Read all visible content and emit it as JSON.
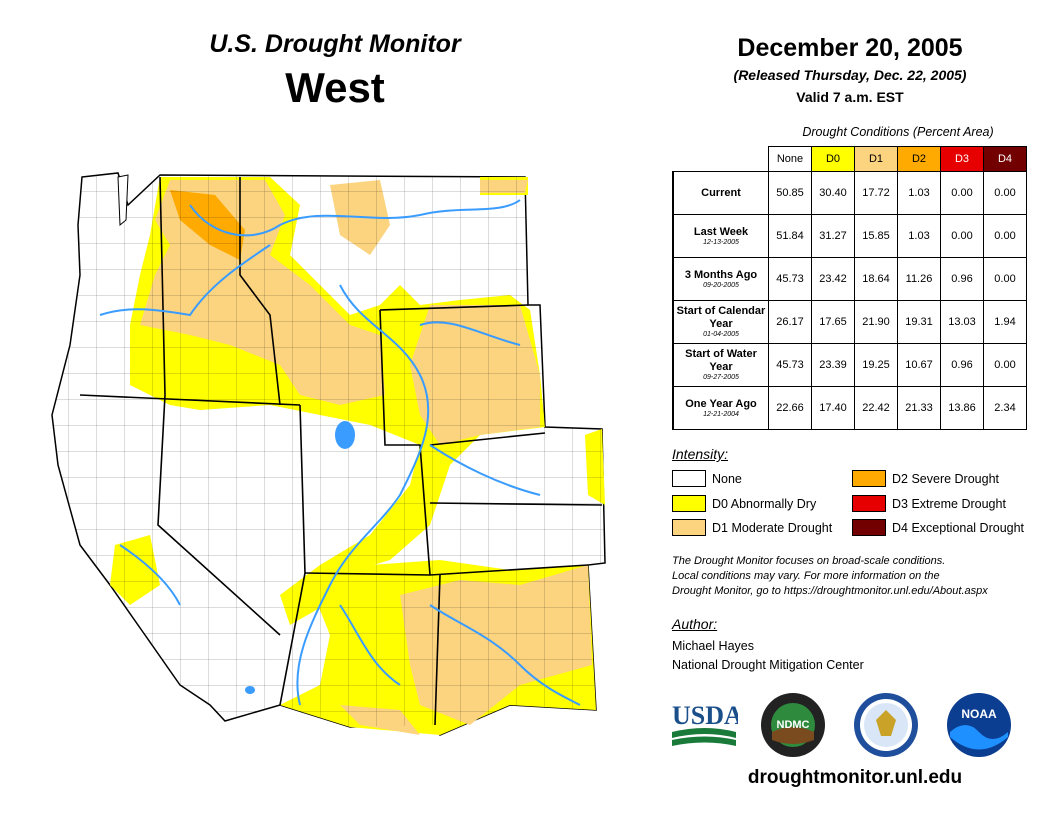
{
  "header": {
    "title": "U.S. Drought Monitor",
    "region": "West",
    "date": "December 20, 2005",
    "released": "(Released Thursday, Dec. 22, 2005)",
    "valid": "Valid 7 a.m. EST"
  },
  "table": {
    "caption": "Drought Conditions (Percent Area)",
    "columns": [
      "None",
      "D0",
      "D1",
      "D2",
      "D3",
      "D4"
    ],
    "column_colors": [
      "#ffffff",
      "#ffff00",
      "#fcd37f",
      "#ffaa00",
      "#e60000",
      "#730000"
    ],
    "rows": [
      {
        "label": "Current",
        "sub": "",
        "values": [
          "50.85",
          "30.40",
          "17.72",
          "1.03",
          "0.00",
          "0.00"
        ]
      },
      {
        "label": "Last Week",
        "sub": "12-13-2005",
        "values": [
          "51.84",
          "31.27",
          "15.85",
          "1.03",
          "0.00",
          "0.00"
        ]
      },
      {
        "label": "3 Months Ago",
        "sub": "09-20-2005",
        "values": [
          "45.73",
          "23.42",
          "18.64",
          "11.26",
          "0.96",
          "0.00"
        ]
      },
      {
        "label": "Start of Calendar Year",
        "sub": "01-04-2005",
        "values": [
          "26.17",
          "17.65",
          "21.90",
          "19.31",
          "13.03",
          "1.94"
        ]
      },
      {
        "label": "Start of Water Year",
        "sub": "09-27-2005",
        "values": [
          "45.73",
          "23.39",
          "19.25",
          "10.67",
          "0.96",
          "0.00"
        ]
      },
      {
        "label": "One Year Ago",
        "sub": "12-21-2004",
        "values": [
          "22.66",
          "17.40",
          "22.42",
          "21.33",
          "13.86",
          "2.34"
        ]
      }
    ]
  },
  "legend": {
    "heading": "Intensity:",
    "items": [
      {
        "label": "None",
        "color": "#ffffff"
      },
      {
        "label": "D0 Abnormally Dry",
        "color": "#ffff00"
      },
      {
        "label": "D1 Moderate Drought",
        "color": "#fcd37f"
      },
      {
        "label": "D2 Severe Drought",
        "color": "#ffaa00"
      },
      {
        "label": "D3 Extreme Drought",
        "color": "#e60000"
      },
      {
        "label": "D4 Exceptional Drought",
        "color": "#730000"
      }
    ]
  },
  "note": {
    "line1": "The Drought Monitor focuses on broad-scale conditions.",
    "line2": "Local conditions may vary. For more information on the",
    "line3": "Drought Monitor, go to https://droughtmonitor.unl.edu/About.aspx"
  },
  "author": {
    "heading": "Author:",
    "name": "Michael Hayes",
    "org": "National Drought Mitigation Center"
  },
  "logos": {
    "usda": "USDA",
    "ndmc": "NDMC",
    "noaa": "NOAA"
  },
  "footer": {
    "site": "droughtmonitor.unl.edu"
  }
}
